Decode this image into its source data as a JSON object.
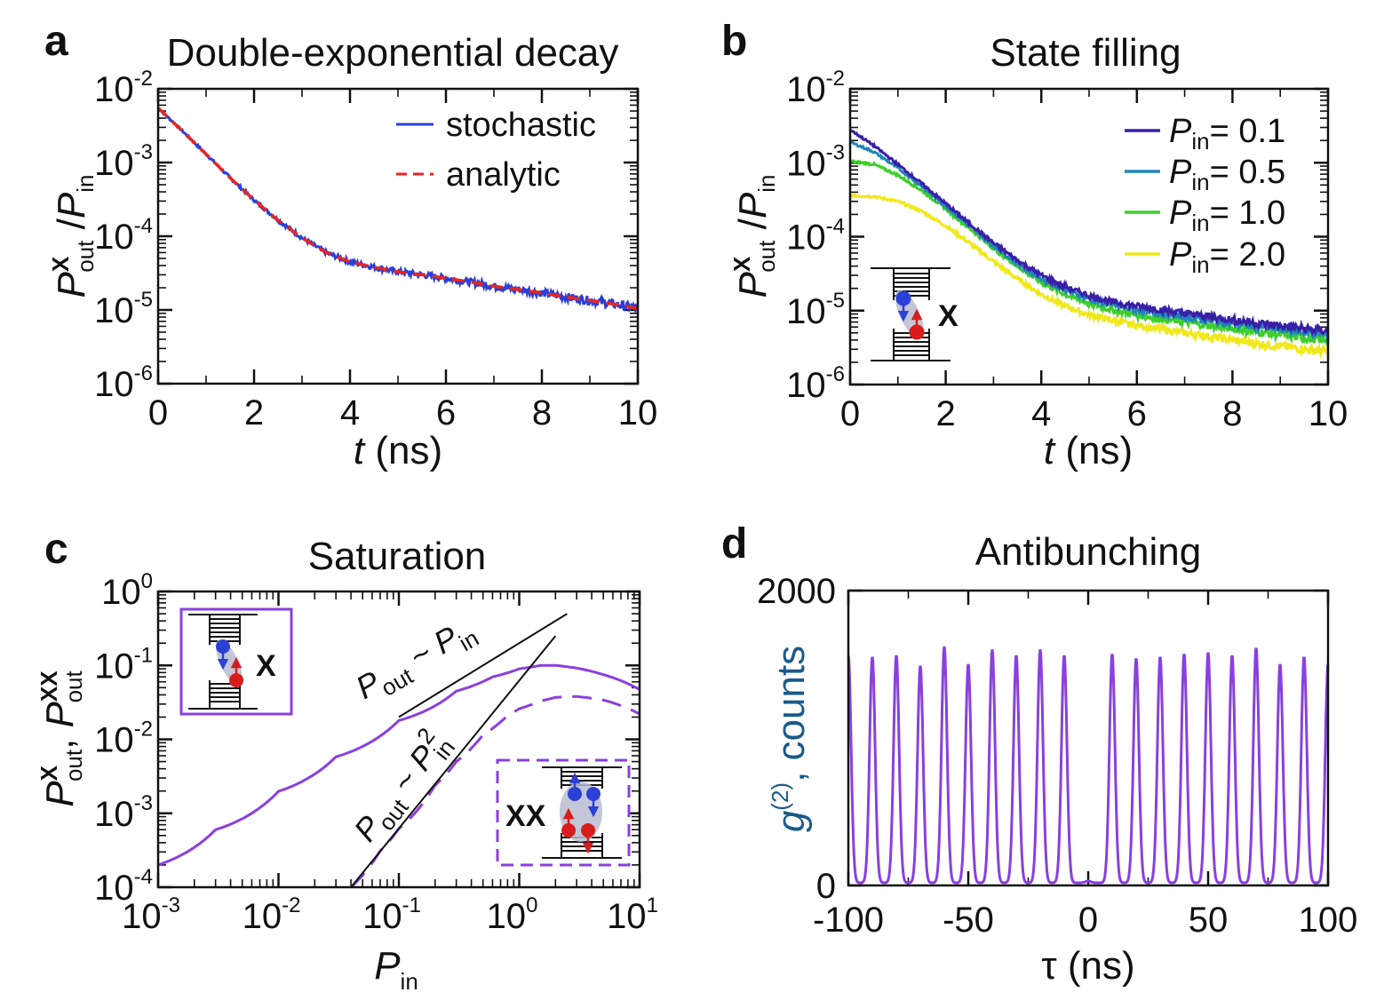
{
  "chart_data": [
    {
      "panel": "a",
      "type": "line",
      "title": "Double-exponential decay",
      "xlabel": "t (ns)",
      "ylabel": "P_out^X / P_in",
      "xlim": [
        0,
        10
      ],
      "ylim": [
        1e-06,
        0.01
      ],
      "yscale": "log",
      "xticks": [
        "0",
        "2",
        "4",
        "6",
        "8",
        "10"
      ],
      "yticks": [
        [
          "10",
          "-2"
        ],
        [
          "10",
          "-3"
        ],
        [
          "10",
          "-4"
        ],
        [
          "10",
          "-5"
        ],
        [
          "10",
          "-6"
        ]
      ],
      "series": [
        {
          "name": "stochastic",
          "color": "#2b3fd9",
          "style": "solid",
          "noisy": true,
          "x": [
            0,
            0.5,
            1,
            1.5,
            2,
            2.5,
            3,
            3.5,
            4,
            4.5,
            5,
            5.5,
            6,
            6.5,
            7,
            7.5,
            8,
            8.5,
            9,
            9.5,
            10
          ],
          "y": [
            0.0055,
            0.0027,
            0.0013,
            0.00062,
            0.00031,
            0.000165,
            9.5e-05,
            6e-05,
            4.5e-05,
            3.8e-05,
            3.3e-05,
            3e-05,
            2.7e-05,
            2.4e-05,
            2.1e-05,
            1.9e-05,
            1.7e-05,
            1.5e-05,
            1.35e-05,
            1.2e-05,
            1.05e-05
          ]
        },
        {
          "name": "analytic",
          "color": "#e8261f",
          "style": "dashed",
          "x": [
            0,
            0.5,
            1,
            1.5,
            2,
            2.5,
            3,
            3.5,
            4,
            4.5,
            5,
            5.5,
            6,
            6.5,
            7,
            7.5,
            8,
            8.5,
            9,
            9.5,
            10
          ],
          "y": [
            0.0055,
            0.0027,
            0.0013,
            0.00062,
            0.00031,
            0.000165,
            9.5e-05,
            6e-05,
            4.5e-05,
            3.8e-05,
            3.3e-05,
            3e-05,
            2.7e-05,
            2.4e-05,
            2.1e-05,
            1.9e-05,
            1.7e-05,
            1.5e-05,
            1.35e-05,
            1.2e-05,
            1.05e-05
          ]
        }
      ],
      "legend": [
        {
          "label": "stochastic",
          "color": "#2b3fd9",
          "style": "solid"
        },
        {
          "label": "analytic",
          "color": "#e8261f",
          "style": "dashed"
        }
      ],
      "legend_position": "top-right"
    },
    {
      "panel": "b",
      "type": "line",
      "title": "State filling",
      "xlabel": "t (ns)",
      "ylabel": "P_out^X / P_in",
      "xlim": [
        0,
        10
      ],
      "ylim": [
        1e-06,
        0.01
      ],
      "yscale": "log",
      "xticks": [
        "0",
        "2",
        "4",
        "6",
        "8",
        "10"
      ],
      "yticks": [
        [
          "10",
          "-2"
        ],
        [
          "10",
          "-3"
        ],
        [
          "10",
          "-4"
        ],
        [
          "10",
          "-5"
        ],
        [
          "10",
          "-6"
        ]
      ],
      "series": [
        {
          "name": "P_in = 0.1",
          "color": "#3a1fa8",
          "noisy": true,
          "x": [
            0,
            0.5,
            1,
            1.5,
            2,
            2.5,
            3,
            3.5,
            4,
            4.5,
            5,
            5.5,
            6,
            6.5,
            7,
            7.5,
            8,
            8.5,
            9,
            9.5,
            10
          ],
          "y": [
            0.0028,
            0.0017,
            0.00095,
            0.00052,
            0.00028,
            0.00015,
            8.2e-05,
            4.8e-05,
            3e-05,
            2.1e-05,
            1.6e-05,
            1.3e-05,
            1.15e-05,
            1.03e-05,
            9.2e-06,
            8.3e-06,
            7.5e-06,
            6.8e-06,
            6.2e-06,
            5.7e-06,
            5.3e-06
          ]
        },
        {
          "name": "P_in = 0.5",
          "color": "#1f86b8",
          "noisy": true,
          "x": [
            0,
            0.5,
            1,
            1.5,
            2,
            2.5,
            3,
            3.5,
            4,
            4.5,
            5,
            5.5,
            6,
            6.5,
            7,
            7.5,
            8,
            8.5,
            9,
            9.5,
            10
          ],
          "y": [
            0.0019,
            0.0014,
            0.00085,
            0.00048,
            0.00026,
            0.00014,
            7.6e-05,
            4.4e-05,
            2.7e-05,
            1.9e-05,
            1.45e-05,
            1.18e-05,
            1.02e-05,
            9.1e-06,
            8.2e-06,
            7.4e-06,
            6.7e-06,
            6.1e-06,
            5.6e-06,
            5.1e-06,
            4.7e-06
          ]
        },
        {
          "name": "P_in = 1.0",
          "color": "#3ccf2a",
          "noisy": true,
          "x": [
            0,
            0.5,
            1,
            1.5,
            2,
            2.5,
            3,
            3.5,
            4,
            4.5,
            5,
            5.5,
            6,
            6.5,
            7,
            7.5,
            8,
            8.5,
            9,
            9.5,
            10
          ],
          "y": [
            0.00105,
            0.00095,
            0.00068,
            0.00042,
            0.00024,
            0.00013,
            7e-05,
            4e-05,
            2.4e-05,
            1.65e-05,
            1.25e-05,
            1.01e-05,
            8.7e-06,
            7.8e-06,
            7e-06,
            6.3e-06,
            5.7e-06,
            5.2e-06,
            4.7e-06,
            4.3e-06,
            4e-06
          ]
        },
        {
          "name": "P_in = 2.0",
          "color": "#f0e81a",
          "noisy": true,
          "x": [
            0,
            0.5,
            1,
            1.5,
            2,
            2.5,
            3,
            3.5,
            4,
            4.5,
            5,
            5.5,
            6,
            6.5,
            7,
            7.5,
            8,
            8.5,
            9,
            9.5,
            10
          ],
          "y": [
            0.00036,
            0.00035,
            0.0003,
            0.00022,
            0.00014,
            8.2e-05,
            4.6e-05,
            2.7e-05,
            1.65e-05,
            1.15e-05,
            8.8e-06,
            7.3e-06,
            6.3e-06,
            5.6e-06,
            5e-06,
            4.5e-06,
            4e-06,
            3.6e-06,
            3.3e-06,
            3e-06,
            2.8e-06
          ]
        }
      ],
      "legend": [
        {
          "label": "= 0.1",
          "color": "#3a1fa8"
        },
        {
          "label": "= 0.5",
          "color": "#1f86b8"
        },
        {
          "label": "= 1.0",
          "color": "#3ccf2a"
        },
        {
          "label": "= 2.0",
          "color": "#f0e81a"
        }
      ],
      "legend_prefix": "P",
      "legend_prefix_sub": "in",
      "legend_position": "top-right",
      "inset_label": "X"
    },
    {
      "panel": "c",
      "type": "line",
      "title": "Saturation",
      "xlabel": "P_in",
      "ylabel": "P_out^X, P_out^XX",
      "xscale": "log",
      "yscale": "log",
      "xlim": [
        0.001,
        10
      ],
      "ylim": [
        0.0001,
        1
      ],
      "xticks": [
        [
          "10",
          "-3"
        ],
        [
          "10",
          "-2"
        ],
        [
          "10",
          "-1"
        ],
        [
          "10",
          "0"
        ],
        [
          "10",
          "1"
        ]
      ],
      "yticks": [
        [
          "10",
          "0"
        ],
        [
          "10",
          "-1"
        ],
        [
          "10",
          "-2"
        ],
        [
          "10",
          "-3"
        ],
        [
          "10",
          "-4"
        ]
      ],
      "series": [
        {
          "name": "X",
          "color": "#8a3fe0",
          "style": "solid",
          "x": [
            0.001,
            0.003,
            0.01,
            0.03,
            0.1,
            0.3,
            0.6,
            1,
            1.5,
            2,
            3,
            5,
            10
          ],
          "y": [
            0.0002,
            0.0006,
            0.00198,
            0.0058,
            0.018,
            0.045,
            0.07,
            0.09,
            0.1,
            0.1,
            0.092,
            0.075,
            0.047
          ]
        },
        {
          "name": "XX",
          "color": "#8a3fe0",
          "style": "dashed",
          "x": [
            0.04,
            0.07,
            0.1,
            0.2,
            0.3,
            0.5,
            0.8,
            1,
            1.5,
            2,
            3,
            5,
            10
          ],
          "y": [
            0.0001,
            0.00031,
            0.00062,
            0.0024,
            0.005,
            0.0115,
            0.021,
            0.026,
            0.033,
            0.037,
            0.038,
            0.034,
            0.022
          ]
        },
        {
          "name": "P_out ~ P_in",
          "color": "#111111",
          "style": "solid",
          "x": [
            0.1,
            2.5
          ],
          "y": [
            0.02,
            0.5
          ]
        },
        {
          "name": "P_out ~ P_in^2",
          "color": "#111111",
          "style": "solid",
          "x": [
            0.04,
            0.3,
            2
          ],
          "y": [
            0.0001,
            0.0056,
            0.25
          ]
        }
      ],
      "annotations": [
        {
          "text": "P_out ~ P_in",
          "base": "P",
          "sub1": "out",
          "mid": " ~ ",
          "sub2": "in"
        },
        {
          "text": "P_out ~ P_in^2",
          "base": "P",
          "sub1": "out",
          "mid": " ~ ",
          "sub2": "in",
          "sup2": "2"
        }
      ],
      "inset_labels": [
        "X",
        "XX"
      ]
    },
    {
      "panel": "d",
      "type": "line",
      "title": "Antibunching",
      "xlabel": "τ (ns)",
      "ylabel": "g^(2), counts",
      "xlim": [
        -100,
        100
      ],
      "ylim": [
        0,
        2000
      ],
      "xticks": [
        "-100",
        "-50",
        "0",
        "50",
        "100"
      ],
      "yticks": [
        "2000",
        "0"
      ],
      "color": "#8a3fe0",
      "period_ns": 10,
      "peaks": [
        {
          "x": -100,
          "y": 1560
        },
        {
          "x": -90,
          "y": 1550
        },
        {
          "x": -80,
          "y": 1560
        },
        {
          "x": -70,
          "y": 1490
        },
        {
          "x": -60,
          "y": 1620
        },
        {
          "x": -50,
          "y": 1500
        },
        {
          "x": -40,
          "y": 1600
        },
        {
          "x": -30,
          "y": 1560
        },
        {
          "x": -20,
          "y": 1600
        },
        {
          "x": -10,
          "y": 1560
        },
        {
          "x": 0,
          "y": 30
        },
        {
          "x": 10,
          "y": 1570
        },
        {
          "x": 20,
          "y": 1540
        },
        {
          "x": 30,
          "y": 1550
        },
        {
          "x": 40,
          "y": 1570
        },
        {
          "x": 50,
          "y": 1580
        },
        {
          "x": 60,
          "y": 1560
        },
        {
          "x": 70,
          "y": 1610
        },
        {
          "x": 80,
          "y": 1500
        },
        {
          "x": 90,
          "y": 1550
        },
        {
          "x": 100,
          "y": 1500
        }
      ],
      "baseline": 60
    }
  ]
}
